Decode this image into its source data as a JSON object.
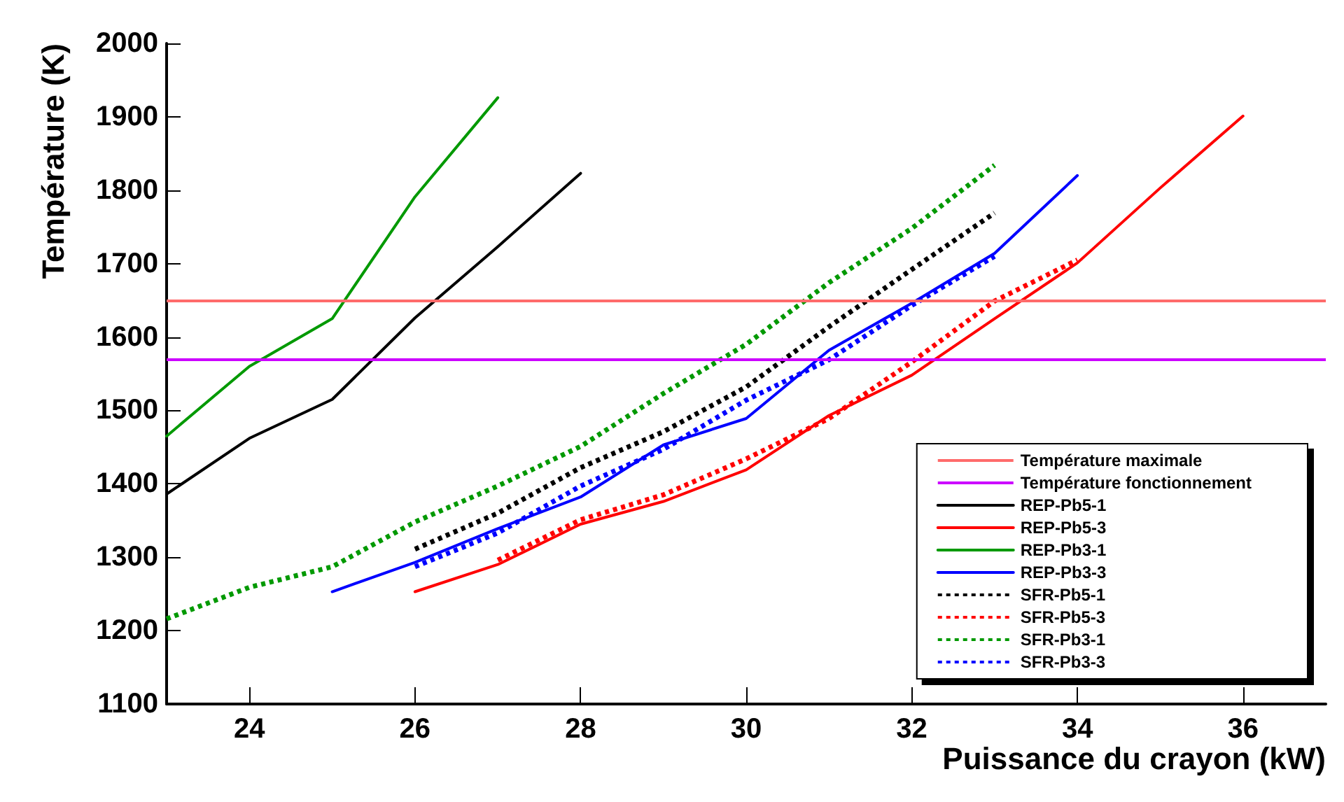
{
  "chart_data": {
    "type": "line",
    "xlabel": "Puissance du crayon (kW)",
    "ylabel": "Température (K)",
    "xlim": [
      23,
      37
    ],
    "xticks": [
      24,
      26,
      28,
      30,
      32,
      34,
      36
    ],
    "ylim": [
      1100,
      2000
    ],
    "yticks": [
      1100,
      1200,
      1300,
      1400,
      1500,
      1600,
      1700,
      1800,
      1900,
      2000
    ],
    "grid": false,
    "legend": "bottom right",
    "marker": "none",
    "ref_lines": [
      {
        "axis": "y",
        "value": 1650,
        "label": "Température maximale",
        "color": "#ff6b6b"
      },
      {
        "axis": "y",
        "value": 1570,
        "label": "Température fonctionnement",
        "color": "#cc00ff"
      }
    ],
    "series": [
      {
        "name": "REP-Pb5-1",
        "color": "#000000",
        "line_style": "solid",
        "x": [
          23,
          24,
          25,
          26,
          27,
          28
        ],
        "values": [
          1386,
          1462,
          1515,
          1626,
          1723,
          1823
        ]
      },
      {
        "name": "REP-Pb5-3",
        "color": "#ff0000",
        "line_style": "solid",
        "x": [
          26,
          27,
          28,
          29,
          30,
          31,
          32,
          33,
          34,
          35,
          36
        ],
        "values": [
          1253,
          1290,
          1345,
          1376,
          1419,
          1493,
          1548,
          1625,
          1701,
          1803,
          1901
        ]
      },
      {
        "name": "REP-Pb3-1",
        "color": "#009900",
        "line_style": "solid",
        "x": [
          23,
          24,
          25,
          26,
          27
        ],
        "values": [
          1465,
          1560,
          1625,
          1791,
          1926
        ]
      },
      {
        "name": "REP-Pb3-3",
        "color": "#0000ff",
        "line_style": "solid",
        "x": [
          25,
          26,
          27,
          28,
          29,
          30,
          31,
          32,
          33,
          34
        ],
        "values": [
          1253,
          1293,
          1339,
          1382,
          1453,
          1489,
          1582,
          1646,
          1714,
          1820
        ]
      },
      {
        "name": "SFR-Pb5-1",
        "color": "#000000",
        "line_style": "dotted",
        "x": [
          26,
          27,
          28,
          29,
          30,
          31,
          32,
          33
        ],
        "values": [
          1311,
          1360,
          1422,
          1471,
          1532,
          1614,
          1692,
          1769
        ]
      },
      {
        "name": "SFR-Pb5-3",
        "color": "#ff0000",
        "line_style": "dotted",
        "x": [
          27,
          28,
          29,
          30,
          31,
          32,
          33,
          34
        ],
        "values": [
          1296,
          1351,
          1385,
          1434,
          1489,
          1566,
          1649,
          1705
        ]
      },
      {
        "name": "SFR-Pb3-1",
        "color": "#009900",
        "line_style": "dotted",
        "x": [
          23,
          24,
          25,
          26,
          27,
          28,
          29,
          30,
          31,
          32,
          33
        ],
        "values": [
          1216,
          1259,
          1287,
          1348,
          1397,
          1451,
          1523,
          1590,
          1674,
          1748,
          1834
        ]
      },
      {
        "name": "SFR-Pb3-3",
        "color": "#0000ff",
        "line_style": "dotted",
        "x": [
          26,
          27,
          28,
          29,
          30,
          31,
          32,
          33
        ],
        "values": [
          1287,
          1333,
          1397,
          1447,
          1514,
          1569,
          1643,
          1710
        ]
      }
    ]
  }
}
